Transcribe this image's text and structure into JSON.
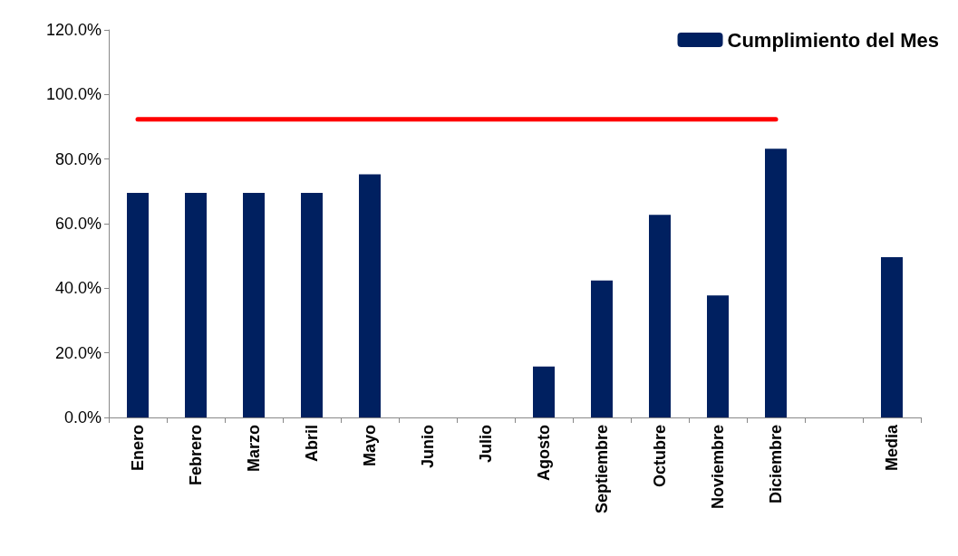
{
  "chart_data": {
    "type": "bar",
    "categories": [
      "Enero",
      "Febrero",
      "Marzo",
      "Abril",
      "Mayo",
      "Junio",
      "Julio",
      "Agosto",
      "Septiembre",
      "Octubre",
      "Noviembre",
      "Diciembre",
      null,
      "Media"
    ],
    "series": [
      {
        "name": "Cumplimiento del Mes",
        "color": "#002060",
        "values": [
          69.5,
          69.5,
          69.5,
          69.5,
          75.3,
          0,
          0,
          15.8,
          42.4,
          62.7,
          37.8,
          83.2,
          null,
          49.6
        ]
      },
      {
        "type": "line",
        "color": "#ff0000",
        "marker": "none",
        "line_style": "solid",
        "values": [
          92.3,
          92.3,
          92.3,
          92.3,
          92.3,
          92.3,
          92.3,
          92.3,
          92.3,
          92.3,
          92.3,
          92.3,
          null,
          null
        ]
      }
    ],
    "ylim": [
      0,
      120
    ],
    "yticks": [
      {
        "value": 0,
        "label": "0.0%"
      },
      {
        "value": 20,
        "label": "20.0%"
      },
      {
        "value": 40,
        "label": "40.0%"
      },
      {
        "value": 60,
        "label": "60.0%"
      },
      {
        "value": 80,
        "label": "80.0%"
      },
      {
        "value": 100,
        "label": "100.0%"
      },
      {
        "value": 120,
        "label": "120.0%"
      }
    ],
    "grid": false,
    "legend": "top right"
  }
}
